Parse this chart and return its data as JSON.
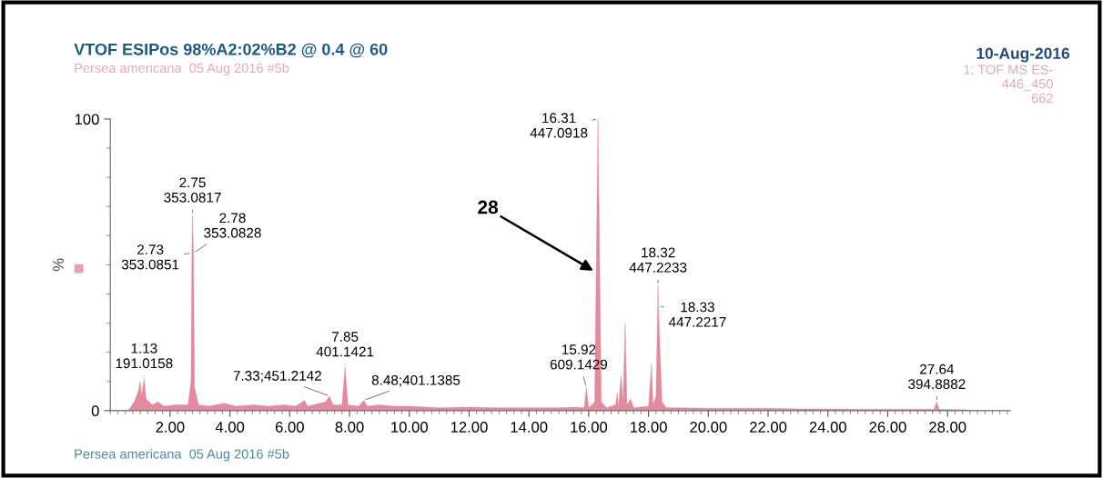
{
  "chart_data": {
    "type": "area",
    "title": "VTOF ESIPos 98%A2:02%B2 @ 0.4 @ 60",
    "subtitle": "Persea americana  05 Aug 2016 #5b",
    "ylabel": "%",
    "x": [
      0.6,
      0.8,
      0.95,
      1.0,
      1.05,
      1.13,
      1.2,
      1.4,
      1.6,
      1.8,
      2.2,
      2.6,
      2.7,
      2.73,
      2.75,
      2.78,
      2.82,
      2.95,
      3.3,
      3.8,
      4.2,
      4.8,
      5.3,
      5.8,
      6.2,
      6.5,
      6.6,
      7.0,
      7.2,
      7.33,
      7.45,
      7.75,
      7.85,
      7.95,
      8.3,
      8.48,
      8.6,
      9.0,
      9.5,
      10,
      11,
      12,
      13,
      14,
      15,
      15.5,
      15.85,
      15.92,
      16.0,
      16.2,
      16.31,
      16.42,
      16.6,
      16.9,
      16.95,
      17.0,
      17.08,
      17.15,
      17.22,
      17.28,
      17.4,
      17.5,
      18.0,
      18.1,
      18.15,
      18.25,
      18.32,
      18.33,
      18.45,
      18.6,
      19,
      20,
      21,
      22,
      23,
      24,
      25,
      26,
      27,
      27.55,
      27.64,
      27.72,
      28.5,
      29
    ],
    "series": [
      {
        "color": "#e38a9e",
        "values": [
          0,
          3,
          7,
          10,
          5,
          11,
          4,
          2,
          3,
          1.5,
          2,
          2,
          10,
          54,
          67,
          54,
          8,
          2,
          1.5,
          2.5,
          1.5,
          2,
          1.5,
          2,
          1.5,
          3.5,
          1.5,
          2.5,
          3,
          5,
          2,
          2,
          15,
          2,
          1.5,
          3.5,
          1.5,
          2,
          1.5,
          1.5,
          1,
          1.2,
          1,
          1,
          1,
          1.2,
          1,
          8,
          1,
          3,
          100,
          3,
          1,
          2,
          6,
          1.5,
          12,
          3,
          30,
          2,
          4,
          1,
          1.5,
          16,
          2,
          5,
          43,
          36,
          3,
          1,
          1,
          0.8,
          0.8,
          0.8,
          0.6,
          0.6,
          0.5,
          0.5,
          0.5,
          0.5,
          3,
          0.4,
          0.3,
          0
        ]
      }
    ],
    "xlim": [
      0,
      30.1
    ],
    "ylim": [
      0,
      100
    ],
    "xticks": [
      {
        "value": 2,
        "label": "2.00"
      },
      {
        "value": 4,
        "label": "4.00"
      },
      {
        "value": 6,
        "label": "6.00"
      },
      {
        "value": 8,
        "label": "8.00"
      },
      {
        "value": 10,
        "label": "10.00"
      },
      {
        "value": 12,
        "label": "12.00"
      },
      {
        "value": 14,
        "label": "14.00"
      },
      {
        "value": 16,
        "label": "16.00"
      },
      {
        "value": 18,
        "label": "18.00"
      },
      {
        "value": 20,
        "label": "20.00"
      },
      {
        "value": 22,
        "label": "22.00"
      },
      {
        "value": 24,
        "label": "24.00"
      },
      {
        "value": 26,
        "label": "26.00"
      },
      {
        "value": 28,
        "label": "28.00"
      }
    ],
    "yticks": [
      0,
      100
    ],
    "grid": false,
    "legend": false,
    "annotations": [
      "10-Aug-2016",
      "1: TOF MS ES-\n446_450\n662",
      "Persea americana  05 Aug 2016 #5b",
      {
        "text": "1.13\n191.0158",
        "x": 1.13,
        "y": 11
      },
      {
        "text": "2.73\n353.0851",
        "x": 2.73,
        "y": 54
      },
      {
        "text": "2.75\n353.0817",
        "x": 2.75,
        "y": 67
      },
      {
        "text": "2.78\n353.0828",
        "x": 2.78,
        "y": 54
      },
      {
        "text": "7.33;451.2142",
        "x": 7.33,
        "y": 5
      },
      {
        "text": "7.85\n401.1421",
        "x": 7.85,
        "y": 15
      },
      {
        "text": "8.48;401.1385",
        "x": 8.48,
        "y": 3.5
      },
      {
        "text": "15.92\n609.1429",
        "x": 15.92,
        "y": 8
      },
      {
        "text": "16.31\n447.0918",
        "x": 16.31,
        "y": 100
      },
      {
        "text": "18.32\n447.2233",
        "x": 18.32,
        "y": 43
      },
      {
        "text": "18.33\n447.2217",
        "x": 18.33,
        "y": 36
      },
      {
        "text": "27.64\n394.8882",
        "x": 27.64,
        "y": 3
      },
      {
        "text": "28",
        "x": 16.15,
        "y": 48
      }
    ]
  }
}
